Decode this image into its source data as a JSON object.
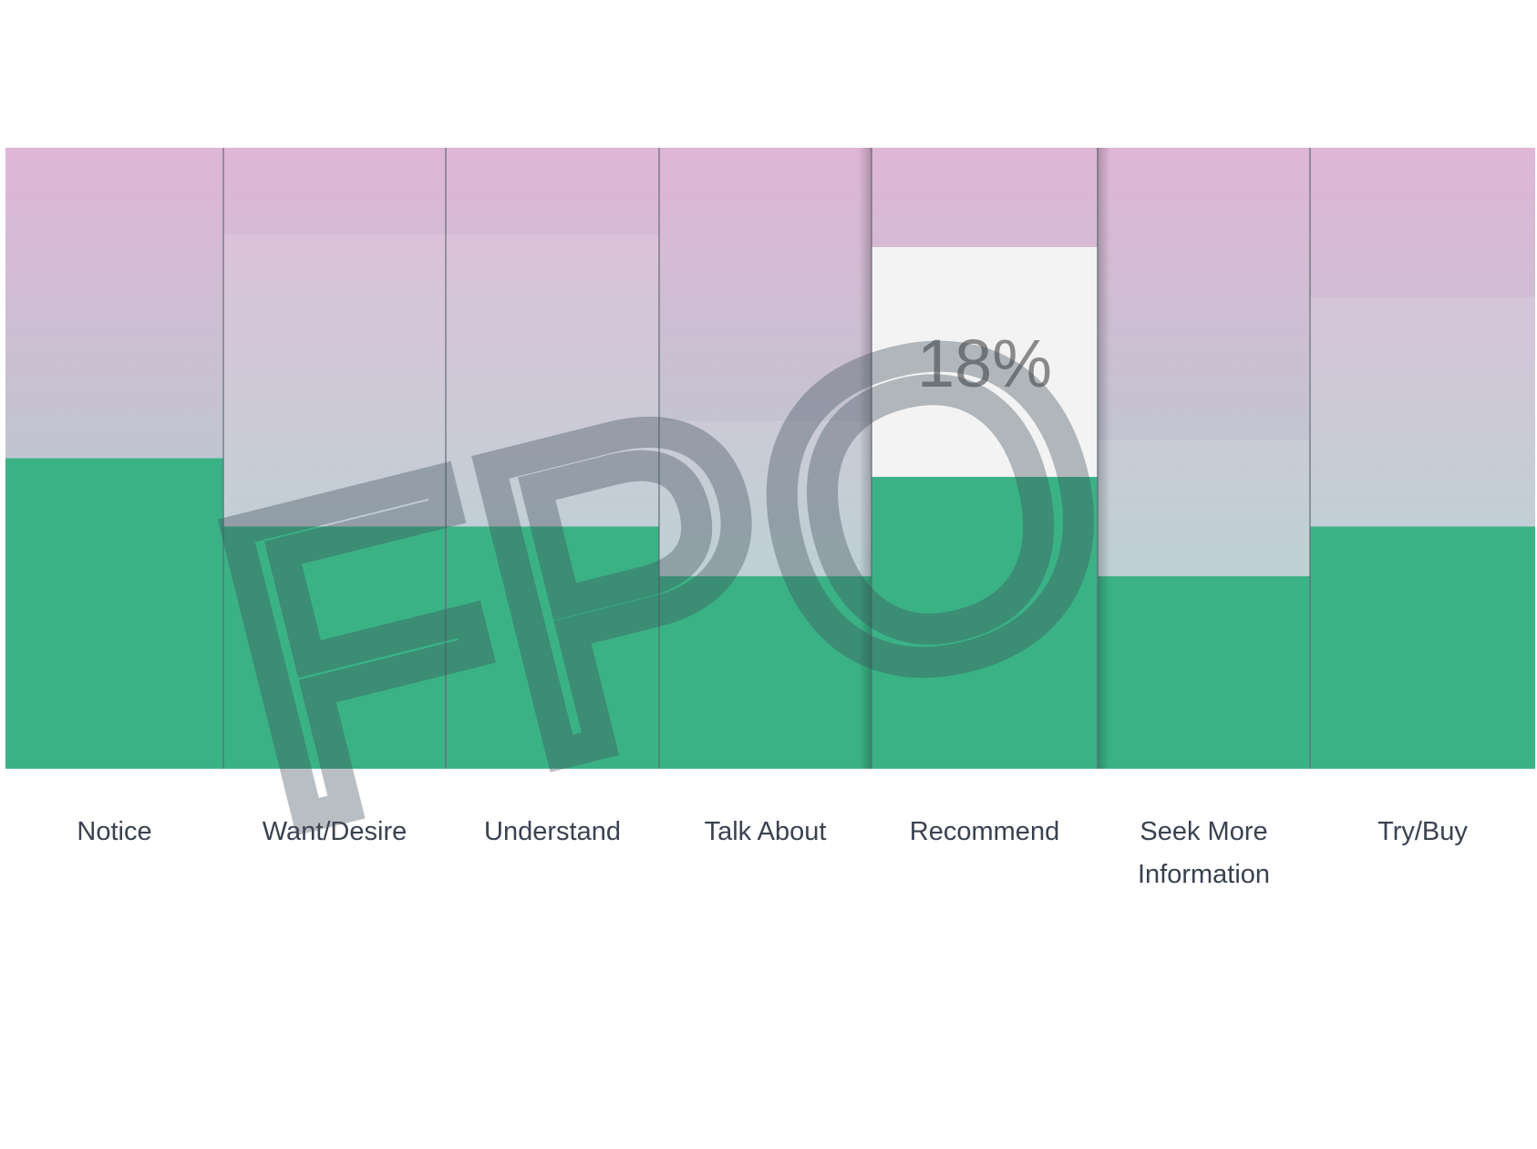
{
  "chart_data": {
    "type": "bar",
    "categories": [
      "Notice",
      "Want/Desire",
      "Understand",
      "Talk About",
      "Recommend",
      "Seek More Information",
      "Try/Buy"
    ],
    "category_lines": [
      [
        "Notice"
      ],
      [
        "Want/Desire"
      ],
      [
        "Understand"
      ],
      [
        "Talk About"
      ],
      [
        "Recommend"
      ],
      [
        "Seek More",
        "Information"
      ],
      [
        "Try/Buy"
      ]
    ],
    "series": [
      {
        "values": [
          50,
          39,
          39,
          31,
          47,
          31,
          39
        ]
      },
      {
        "values": [
          50,
          86,
          86,
          56,
          84,
          53,
          76
        ]
      }
    ],
    "ylim": [
      0,
      100
    ],
    "highlight": {
      "category": "Recommend",
      "label": "18%"
    },
    "grid": false,
    "legend": "none",
    "watermark": "FPO",
    "colors": {
      "bar": "#3bb286",
      "track_top": "#dfb6d6",
      "track_bottom": "#a2d4cc",
      "highlight_fill": "#f3f3f3",
      "label_text": "#3a4150",
      "divider": "#5b6870"
    }
  }
}
